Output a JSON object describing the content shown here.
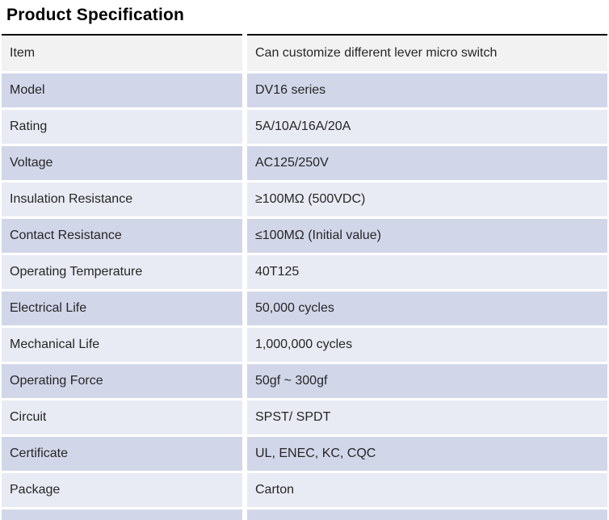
{
  "page": {
    "title": "Product Specification"
  },
  "table": {
    "rows": [
      {
        "label": "Item",
        "value": "Can customize different lever micro switch"
      },
      {
        "label": "Model",
        "value": "DV16 series"
      },
      {
        "label": "Rating",
        "value": "5A/10A/16A/20A"
      },
      {
        "label": "Voltage",
        "value": "AC125/250V"
      },
      {
        "label": "Insulation Resistance",
        "value": "≥100MΩ (500VDC)"
      },
      {
        "label": "Contact Resistance",
        "value": "≤100MΩ (Initial value)"
      },
      {
        "label": "Operating Temperature",
        "value": "40T125"
      },
      {
        "label": "Electrical Life",
        "value": "50,000 cycles"
      },
      {
        "label": "Mechanical Life",
        "value": "1,000,000 cycles"
      },
      {
        "label": "Operating Force",
        "value": "50gf ~ 300gf"
      },
      {
        "label": "Circuit",
        "value": "SPST/ SPDT"
      },
      {
        "label": "Certificate",
        "value": "UL, ENEC, KC, CQC"
      },
      {
        "label": "Package",
        "value": "Carton"
      }
    ]
  },
  "colors": {
    "title_color": "#000000",
    "top_border": "#000000",
    "header_row_bg": "#F2F2F2",
    "row_dark_bg": "#D2D6E9",
    "row_light_bg": "#E9EBF4",
    "text_color": "#262626",
    "gutter": "#FFFFFF"
  }
}
